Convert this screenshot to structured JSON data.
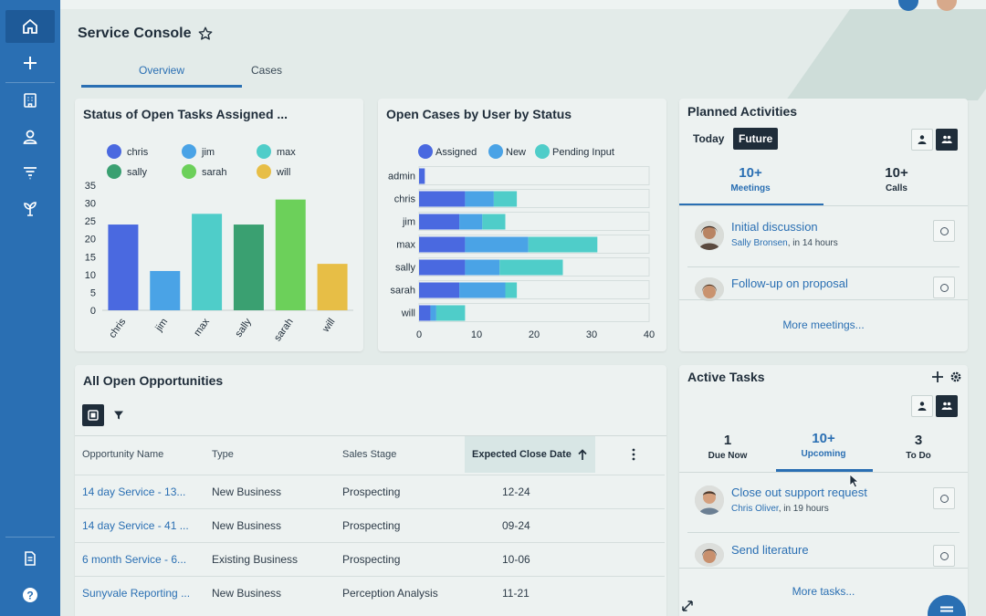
{
  "app": {
    "title": "Service Console",
    "tabs": [
      {
        "label": "Overview",
        "active": true
      },
      {
        "label": "Cases",
        "active": false
      }
    ]
  },
  "colors": {
    "nav": "#2a6fb3",
    "accent": "#2a6fb3",
    "chris": "#4a69e0",
    "jim": "#4aa3e6",
    "max": "#4fcdc9",
    "sally": "#3aa071",
    "sarah": "#6cd05a",
    "will": "#e7be46",
    "assigned": "#4a69e0",
    "new": "#4aa3e6",
    "pending": "#4fcdc9"
  },
  "nav": {
    "items": [
      "home-icon",
      "plus-icon",
      "building-icon",
      "person-icon",
      "filter-icon",
      "plant-icon",
      "document-icon",
      "help-icon"
    ]
  },
  "tasks_chart": {
    "title": "Status of Open Tasks Assigned ...",
    "chart_data": {
      "type": "bar",
      "categories": [
        "chris",
        "jim",
        "max",
        "sally",
        "sarah",
        "will"
      ],
      "series": [
        {
          "values": [
            24,
            11,
            27,
            24,
            31,
            13
          ]
        }
      ],
      "legend": [
        "chris",
        "jim",
        "max",
        "sally",
        "sarah",
        "will"
      ],
      "yticks": [
        "0",
        "5",
        "10",
        "15",
        "20",
        "25",
        "30",
        "35"
      ],
      "ylim": [
        0,
        35
      ],
      "grid": false,
      "legend_position": "top"
    }
  },
  "cases_chart": {
    "title": "Open Cases by User by Status",
    "chart_data": {
      "type": "bar",
      "orientation": "horizontal",
      "stacked": true,
      "categories": [
        "admin",
        "chris",
        "jim",
        "max",
        "sally",
        "sarah",
        "will"
      ],
      "series": [
        {
          "name": "Assigned",
          "values": [
            1,
            8,
            7,
            8,
            8,
            7,
            2
          ]
        },
        {
          "name": "New",
          "values": [
            0,
            5,
            4,
            11,
            6,
            8,
            1
          ]
        },
        {
          "name": "Pending Input",
          "values": [
            0,
            4,
            4,
            12,
            11,
            2,
            5
          ]
        }
      ],
      "xticks": [
        "0",
        "10",
        "20",
        "30",
        "40"
      ],
      "xlim": [
        0,
        40
      ],
      "grid": true,
      "legend_position": "top"
    }
  },
  "planned": {
    "title": "Planned Activities",
    "today_label": "Today",
    "future_label": "Future",
    "meetings_count": "10+",
    "meetings_label": "Meetings",
    "calls_count": "10+",
    "calls_label": "Calls",
    "items": [
      {
        "title": "Initial discussion",
        "who": "Sally Bronsen",
        "when": ", in 14 hours"
      },
      {
        "title": "Follow-up on proposal",
        "who": "",
        "when": ""
      }
    ],
    "more": "More meetings..."
  },
  "opportunities": {
    "title": "All Open Opportunities",
    "columns": [
      "Opportunity Name",
      "Type",
      "Sales Stage",
      "Expected Close Date"
    ],
    "rows": [
      [
        "14 day Service - 13...",
        "New Business",
        "Prospecting",
        "12-24"
      ],
      [
        "14 day Service - 41 ...",
        "New Business",
        "Prospecting",
        "09-24"
      ],
      [
        "6 month Service - 6...",
        "Existing Business",
        "Prospecting",
        "10-06"
      ],
      [
        "Sunyvale Reporting ...",
        "New Business",
        "Perception Analysis",
        "11-21"
      ]
    ]
  },
  "active_tasks": {
    "title": "Active Tasks",
    "due_now_count": "1",
    "due_now_label": "Due Now",
    "upcoming_count": "10+",
    "upcoming_label": "Upcoming",
    "todo_count": "3",
    "todo_label": "To Do",
    "items": [
      {
        "title": "Close out support request",
        "who": "Chris Oliver",
        "when": ", in 19 hours"
      },
      {
        "title": "Send literature",
        "who": "",
        "when": ""
      }
    ],
    "more": "More tasks..."
  }
}
